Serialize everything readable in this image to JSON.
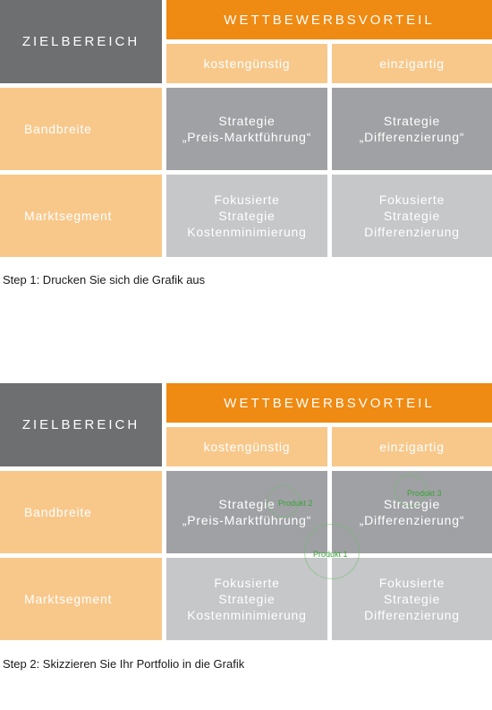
{
  "matrix": {
    "corner": "ZIELBEREICH",
    "header_title": "WETTBEWERBSVORTEIL",
    "col1": "kostengünstig",
    "col2": "einzigartig",
    "row1": "Bandbreite",
    "row2": "Marktsegment",
    "cell_r1c1": [
      "Strategie",
      "„Preis-Marktführung“"
    ],
    "cell_r1c2": [
      "Strategie",
      "„Differenzierung“"
    ],
    "cell_r2c1": [
      "Fokusierte",
      "Strategie",
      "Kostenminimierung"
    ],
    "cell_r2c2": [
      "Fokusierte",
      "Strategie",
      "Differenzierung"
    ]
  },
  "step1": "Step 1: Drucken Sie sich die Grafik aus",
  "step2": "Step 2: Skizzieren Sie Ihr Portfolio in die Grafik",
  "products": {
    "p1": "Produkt 1",
    "p2": "Produkt 2",
    "p3": "Produkt 3"
  },
  "colors": {
    "header_orange": "#ef8a12",
    "label_peach": "#f8c88b",
    "corner_gray": "#6e6f71",
    "cell_mid_gray": "#a0a1a4",
    "cell_light_gray": "#c6c7c9",
    "bubble_green": "#3aa23a"
  }
}
